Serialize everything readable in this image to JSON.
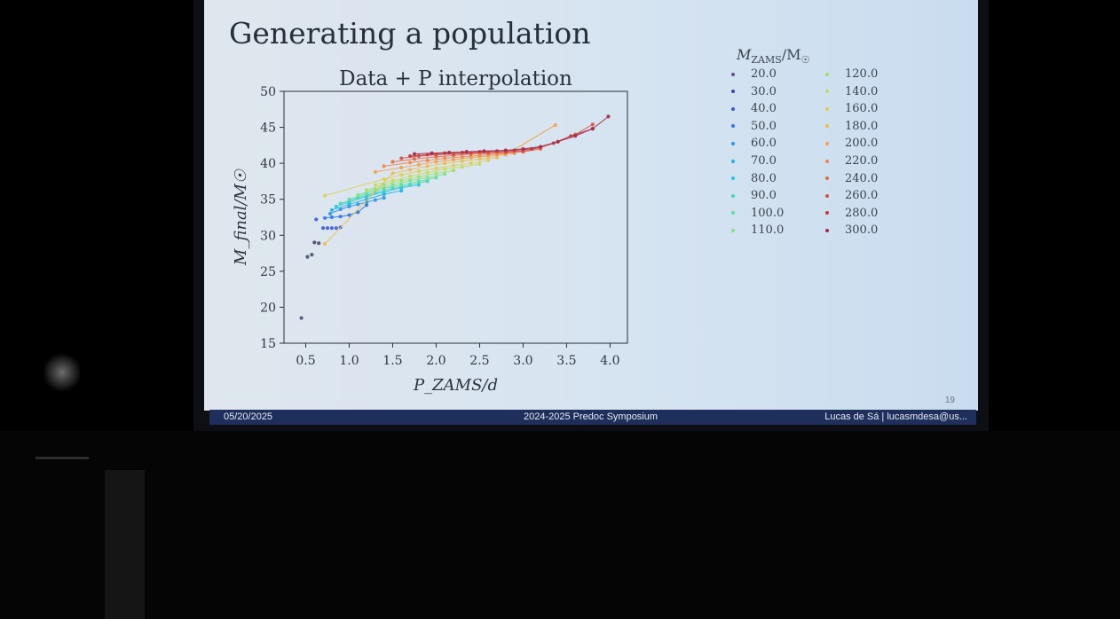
{
  "slide": {
    "title": "Generating a population",
    "footer_date": "05/20/2025",
    "footer_event": "2024-2025 Predoc Symposium",
    "footer_author": "Lucas de Sá | lucasmdesa@us...",
    "slide_number": "19"
  },
  "legend": {
    "title_var": "M",
    "title_sub": "ZAMS",
    "title_unit": "/M",
    "title_sun": "☉",
    "entries": [
      {
        "label": "20.0",
        "color": "#6a4c93"
      },
      {
        "label": "30.0",
        "color": "#4b3fa8"
      },
      {
        "label": "40.0",
        "color": "#3d5bd0"
      },
      {
        "label": "50.0",
        "color": "#2f78e0"
      },
      {
        "label": "60.0",
        "color": "#2a95e8"
      },
      {
        "label": "70.0",
        "color": "#22b2e6"
      },
      {
        "label": "80.0",
        "color": "#2cc7d6"
      },
      {
        "label": "90.0",
        "color": "#42d4bc"
      },
      {
        "label": "100.0",
        "color": "#5edba0"
      },
      {
        "label": "110.0",
        "color": "#7ee084"
      },
      {
        "label": "120.0",
        "color": "#a0e06a"
      },
      {
        "label": "140.0",
        "color": "#c3dc5a"
      },
      {
        "label": "160.0",
        "color": "#dcd052"
      },
      {
        "label": "180.0",
        "color": "#ebbd4e"
      },
      {
        "label": "200.0",
        "color": "#f0a24a"
      },
      {
        "label": "220.0",
        "color": "#ef8646"
      },
      {
        "label": "240.0",
        "color": "#e66a44"
      },
      {
        "label": "260.0",
        "color": "#d65044"
      },
      {
        "label": "280.0",
        "color": "#bf3c46"
      },
      {
        "label": "300.0",
        "color": "#a02e48"
      }
    ]
  },
  "chart_data": {
    "type": "scatter",
    "title": "Data + P interpolation",
    "xlabel": "P_ZAMS/d",
    "ylabel": "M_final/M☉",
    "xlim": [
      0.25,
      4.2
    ],
    "ylim": [
      15,
      50
    ],
    "xticks": [
      0.5,
      1.0,
      1.5,
      2.0,
      2.5,
      3.0,
      3.5,
      4.0
    ],
    "yticks": [
      15,
      20,
      25,
      30,
      35,
      40,
      45,
      50
    ],
    "grid": false,
    "legend_position": "outside-right",
    "series": [
      {
        "name": "20.0",
        "color": "#5a4a7a",
        "line": false,
        "x": [
          0.45
        ],
        "y": [
          18.5
        ]
      },
      {
        "name": "30.0",
        "color": "#4a4a6a",
        "line": false,
        "x": [
          0.52,
          0.57,
          0.6,
          0.65
        ],
        "y": [
          27.0,
          27.3,
          29.0,
          28.9
        ]
      },
      {
        "name": "40.0",
        "color": "#3d5bd0",
        "line": false,
        "x": [
          0.62,
          0.7,
          0.75,
          0.8,
          0.85,
          0.9
        ],
        "y": [
          32.2,
          31.0,
          31.0,
          31.0,
          31.0,
          31.1
        ]
      },
      {
        "name": "50.0",
        "color": "#2f78e0",
        "line": true,
        "x": [
          0.72,
          0.8,
          0.9,
          1.0,
          1.1,
          1.2
        ],
        "y": [
          32.4,
          32.5,
          32.6,
          32.8,
          33.2,
          34.2
        ]
      },
      {
        "name": "60.0",
        "color": "#2a95e8",
        "line": true,
        "x": [
          0.78,
          0.9,
          1.0,
          1.1,
          1.2,
          1.3,
          1.4
        ],
        "y": [
          33.0,
          33.6,
          34.0,
          34.3,
          34.6,
          34.9,
          35.2
        ]
      },
      {
        "name": "70.0",
        "color": "#22b2e6",
        "line": true,
        "x": [
          0.8,
          1.0,
          1.2,
          1.4,
          1.6
        ],
        "y": [
          33.5,
          34.3,
          35.0,
          35.7,
          36.2
        ]
      },
      {
        "name": "80.0",
        "color": "#2cc7d6",
        "line": true,
        "x": [
          0.85,
          1.0,
          1.2,
          1.4,
          1.6,
          1.8
        ],
        "y": [
          34.0,
          34.6,
          35.4,
          36.0,
          36.6,
          37.0
        ]
      },
      {
        "name": "90.0",
        "color": "#42d4bc",
        "line": true,
        "x": [
          0.9,
          1.1,
          1.3,
          1.5,
          1.7,
          1.9
        ],
        "y": [
          34.4,
          35.2,
          35.9,
          36.5,
          37.0,
          37.5
        ]
      },
      {
        "name": "100.0",
        "color": "#5edba0",
        "line": true,
        "x": [
          1.0,
          1.2,
          1.4,
          1.6,
          1.8,
          2.0
        ],
        "y": [
          35.0,
          35.8,
          36.5,
          37.0,
          37.5,
          38.0
        ]
      },
      {
        "name": "110.0",
        "color": "#7ee084",
        "line": true,
        "x": [
          1.1,
          1.3,
          1.5,
          1.7,
          1.9,
          2.1
        ],
        "y": [
          35.6,
          36.4,
          37.0,
          37.6,
          38.0,
          38.5
        ]
      },
      {
        "name": "120.0",
        "color": "#a0e06a",
        "line": true,
        "x": [
          1.2,
          1.4,
          1.6,
          1.8,
          2.0,
          2.2
        ],
        "y": [
          36.3,
          37.0,
          37.6,
          38.1,
          38.6,
          39.0
        ]
      },
      {
        "name": "140.0",
        "color": "#c3dc5a",
        "line": true,
        "x": [
          1.3,
          1.5,
          1.7,
          1.9,
          2.1,
          2.3,
          2.5
        ],
        "y": [
          37.0,
          37.6,
          38.2,
          38.7,
          39.2,
          39.5,
          39.9
        ]
      },
      {
        "name": "160.0",
        "color": "#dcd052",
        "line": true,
        "x": [
          0.72,
          1.4,
          1.6,
          1.8,
          2.0,
          2.2,
          2.4,
          2.6
        ],
        "y": [
          35.5,
          37.8,
          38.4,
          38.9,
          39.3,
          39.7,
          40.0,
          40.4
        ]
      },
      {
        "name": "180.0",
        "color": "#ebbd4e",
        "line": true,
        "x": [
          0.72,
          1.5,
          1.7,
          1.9,
          2.1,
          2.3,
          2.5,
          2.7
        ],
        "y": [
          28.8,
          38.6,
          39.1,
          39.6,
          40.0,
          40.3,
          40.6,
          40.8
        ]
      },
      {
        "name": "200.0",
        "color": "#f0a24a",
        "line": true,
        "x": [
          1.3,
          1.6,
          1.8,
          2.0,
          2.2,
          2.4,
          2.6,
          2.8,
          3.37
        ],
        "y": [
          38.8,
          39.4,
          39.8,
          40.2,
          40.5,
          40.8,
          41.0,
          41.2,
          45.3
        ]
      },
      {
        "name": "220.0",
        "color": "#ef8646",
        "line": true,
        "x": [
          1.4,
          1.7,
          1.9,
          2.1,
          2.3,
          2.5,
          2.7,
          2.9
        ],
        "y": [
          39.6,
          40.1,
          40.4,
          40.7,
          40.9,
          41.1,
          41.3,
          41.4
        ]
      },
      {
        "name": "240.0",
        "color": "#e66a44",
        "line": true,
        "x": [
          1.5,
          1.75,
          2.0,
          2.2,
          2.4,
          2.6,
          2.8,
          3.0,
          3.2
        ],
        "y": [
          40.2,
          40.6,
          40.9,
          41.1,
          41.3,
          41.4,
          41.5,
          41.6,
          42.0
        ]
      },
      {
        "name": "260.0",
        "color": "#d65044",
        "line": true,
        "x": [
          1.6,
          1.8,
          2.0,
          2.2,
          2.4,
          2.6,
          2.8,
          3.0,
          3.2,
          3.4,
          3.6,
          3.8
        ],
        "y": [
          40.7,
          41.0,
          41.2,
          41.3,
          41.4,
          41.5,
          41.6,
          41.7,
          42.2,
          43.0,
          44.0,
          45.4
        ]
      },
      {
        "name": "280.0",
        "color": "#bf3c46",
        "line": true,
        "x": [
          1.7,
          1.9,
          2.1,
          2.3,
          2.5,
          2.7,
          2.9,
          3.1,
          3.35,
          3.55,
          3.8
        ],
        "y": [
          41.0,
          41.2,
          41.4,
          41.5,
          41.6,
          41.7,
          41.8,
          42.0,
          42.8,
          43.8,
          44.8
        ]
      },
      {
        "name": "300.0",
        "color": "#a02e48",
        "line": true,
        "x": [
          1.75,
          1.95,
          2.15,
          2.35,
          2.55,
          2.8,
          3.0,
          3.2,
          3.4,
          3.6,
          3.8,
          3.98
        ],
        "y": [
          41.3,
          41.4,
          41.5,
          41.6,
          41.7,
          41.8,
          42.0,
          42.3,
          43.0,
          43.8,
          44.8,
          46.5
        ]
      }
    ]
  }
}
